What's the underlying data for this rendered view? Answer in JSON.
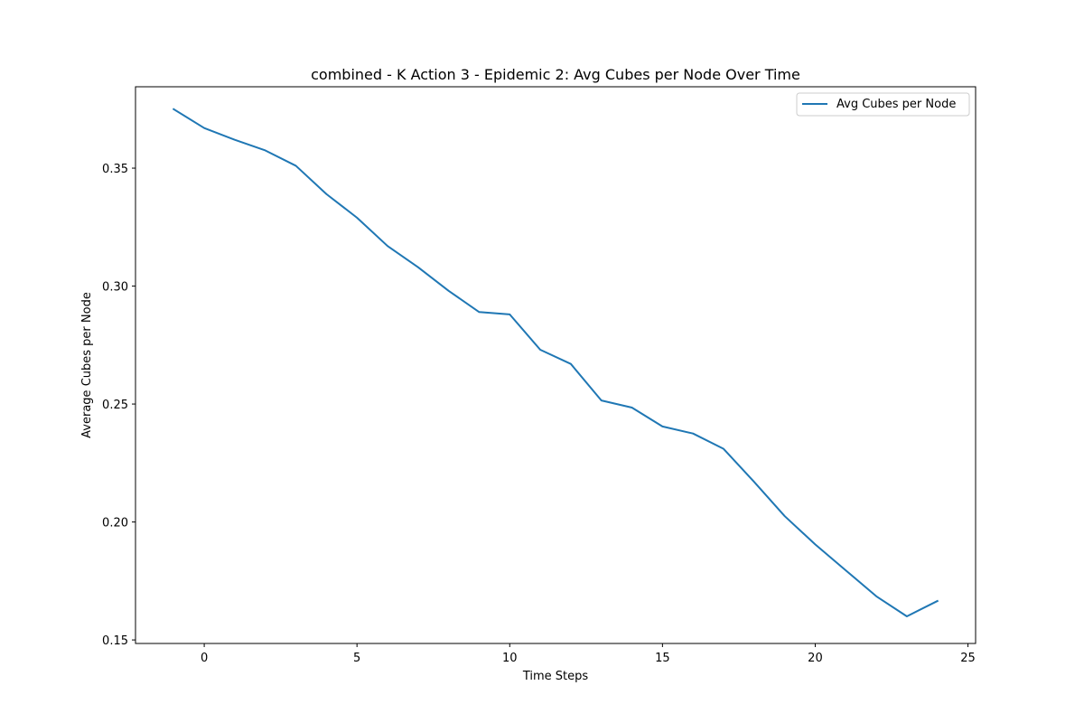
{
  "chart_data": {
    "type": "line",
    "title": "combined - K Action 3 - Epidemic 2: Avg Cubes per Node Over Time",
    "xlabel": "Time Steps",
    "ylabel": "Average Cubes per Node",
    "xlim": [
      -2.25,
      25.25
    ],
    "ylim": [
      0.1485,
      0.3845
    ],
    "xticks": [
      0,
      5,
      10,
      15,
      20,
      25
    ],
    "xtick_labels": [
      "0",
      "5",
      "10",
      "15",
      "20",
      "25"
    ],
    "yticks": [
      0.15,
      0.2,
      0.25,
      0.3,
      0.35
    ],
    "ytick_labels": [
      "0.15",
      "0.20",
      "0.25",
      "0.30",
      "0.35"
    ],
    "grid": false,
    "legend_position": "top-right",
    "series": [
      {
        "name": "Avg Cubes per Node",
        "color": "#1f77b4",
        "x": [
          -1,
          0,
          1,
          2,
          3,
          4,
          5,
          6,
          7,
          8,
          9,
          10,
          11,
          12,
          13,
          14,
          15,
          16,
          17,
          18,
          19,
          20,
          21,
          22,
          23,
          24
        ],
        "y": [
          0.375,
          0.367,
          0.362,
          0.3575,
          0.351,
          0.339,
          0.329,
          0.317,
          0.308,
          0.298,
          0.289,
          0.288,
          0.273,
          0.267,
          0.2515,
          0.2485,
          0.2405,
          0.2375,
          0.231,
          0.217,
          0.2025,
          0.1905,
          0.1795,
          0.1685,
          0.16,
          0.1665
        ]
      }
    ]
  }
}
